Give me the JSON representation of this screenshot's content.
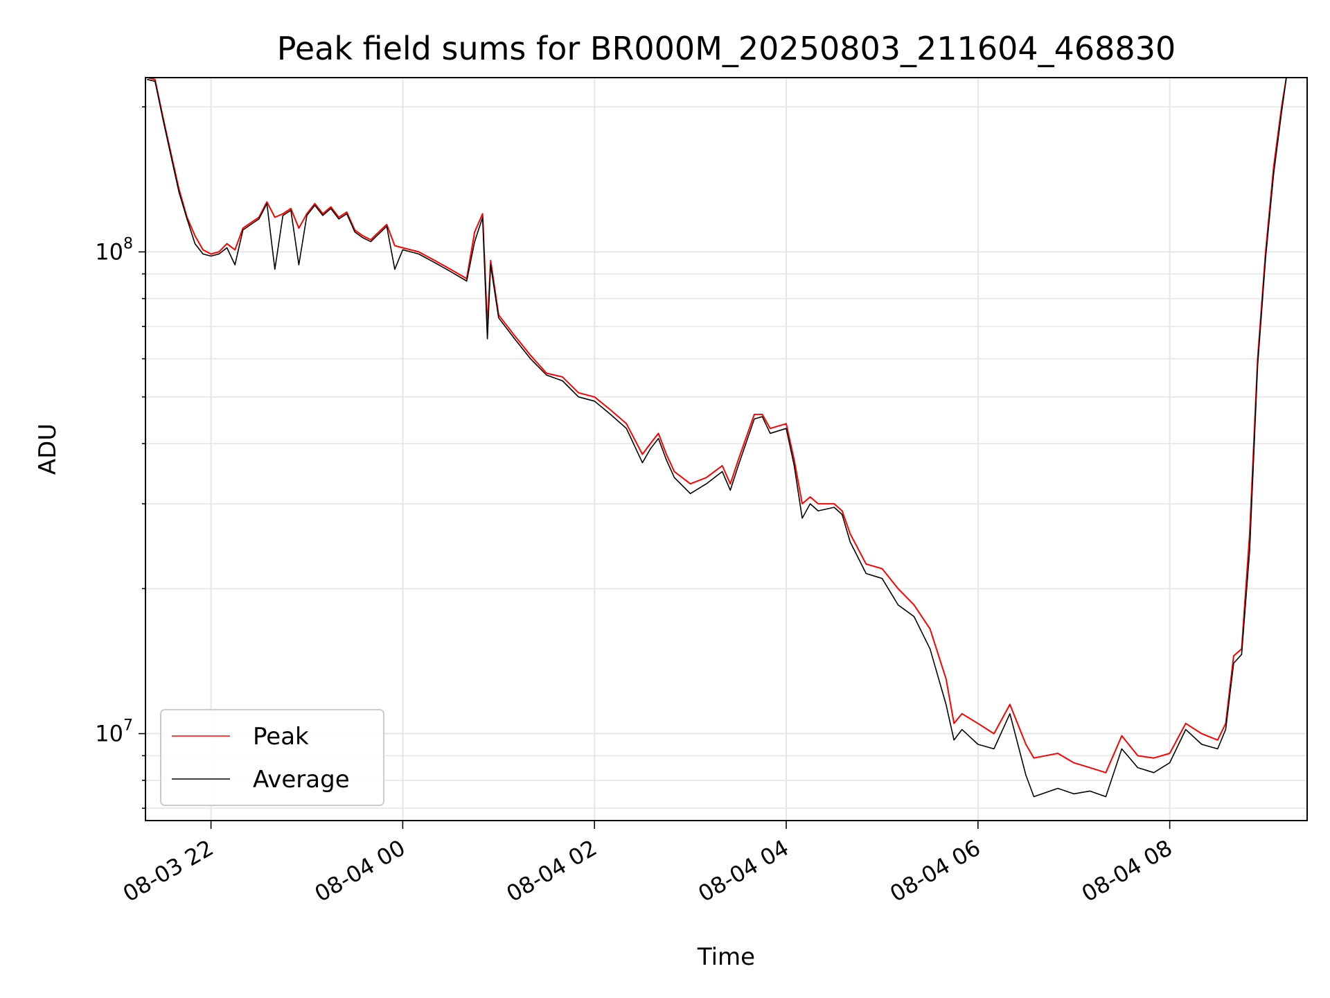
{
  "chart_data": {
    "type": "line",
    "title": "Peak field sums for BR000M_20250803_211604_468830",
    "xlabel": "Time",
    "ylabel": "ADU",
    "yscale": "log",
    "ylim": [
      6600000,
      230000000
    ],
    "xlim": [
      "2025-08-03T21:19",
      "2025-08-04T09:26"
    ],
    "grid": true,
    "legend": "lower-left",
    "colors": {
      "Peak": "#ff0000",
      "Average": "#000000",
      "grid": "#e6e6e6"
    },
    "x_ticks": [
      {
        "t": "2025-08-03T22:00",
        "label": "08-03 22"
      },
      {
        "t": "2025-08-04T00:00",
        "label": "08-04 00"
      },
      {
        "t": "2025-08-04T02:00",
        "label": "08-04 02"
      },
      {
        "t": "2025-08-04T04:00",
        "label": "08-04 04"
      },
      {
        "t": "2025-08-04T06:00",
        "label": "08-04 06"
      },
      {
        "t": "2025-08-04T08:00",
        "label": "08-04 08"
      }
    ],
    "y_ticks": [
      {
        "value": 10000000,
        "base": "10",
        "exp": "7"
      },
      {
        "value": 100000000,
        "base": "10",
        "exp": "8"
      }
    ],
    "series": [
      {
        "name": "Peak",
        "points": [
          [
            "2025-08-03T21:20",
            230000000
          ],
          [
            "2025-08-03T21:25",
            228000000
          ],
          [
            "2025-08-03T21:30",
            190000000
          ],
          [
            "2025-08-03T21:35",
            160000000
          ],
          [
            "2025-08-03T21:40",
            135000000
          ],
          [
            "2025-08-03T21:45",
            118000000
          ],
          [
            "2025-08-03T21:50",
            108000000
          ],
          [
            "2025-08-03T21:55",
            101000000
          ],
          [
            "2025-08-03T22:00",
            99000000
          ],
          [
            "2025-08-03T22:05",
            100000000
          ],
          [
            "2025-08-03T22:10",
            104000000
          ],
          [
            "2025-08-03T22:15",
            101000000
          ],
          [
            "2025-08-03T22:20",
            112000000
          ],
          [
            "2025-08-03T22:25",
            115000000
          ],
          [
            "2025-08-03T22:30",
            118000000
          ],
          [
            "2025-08-03T22:35",
            127000000
          ],
          [
            "2025-08-03T22:40",
            118000000
          ],
          [
            "2025-08-03T22:45",
            120000000
          ],
          [
            "2025-08-03T22:50",
            123000000
          ],
          [
            "2025-08-03T22:55",
            112000000
          ],
          [
            "2025-08-03T23:00",
            120000000
          ],
          [
            "2025-08-03T23:05",
            126000000
          ],
          [
            "2025-08-03T23:10",
            120000000
          ],
          [
            "2025-08-03T23:15",
            124000000
          ],
          [
            "2025-08-03T23:20",
            118000000
          ],
          [
            "2025-08-03T23:25",
            121000000
          ],
          [
            "2025-08-03T23:30",
            111000000
          ],
          [
            "2025-08-03T23:35",
            108000000
          ],
          [
            "2025-08-03T23:40",
            106000000
          ],
          [
            "2025-08-03T23:45",
            110000000
          ],
          [
            "2025-08-03T23:50",
            114000000
          ],
          [
            "2025-08-03T23:55",
            103000000
          ],
          [
            "2025-08-04T00:00",
            102000000
          ],
          [
            "2025-08-04T00:10",
            100000000
          ],
          [
            "2025-08-04T00:20",
            96000000
          ],
          [
            "2025-08-04T00:30",
            92000000
          ],
          [
            "2025-08-04T00:40",
            88000000
          ],
          [
            "2025-08-04T00:45",
            110000000
          ],
          [
            "2025-08-04T00:50",
            120000000
          ],
          [
            "2025-08-04T00:53",
            70000000
          ],
          [
            "2025-08-04T00:55",
            96000000
          ],
          [
            "2025-08-04T01:00",
            74000000
          ],
          [
            "2025-08-04T01:10",
            67000000
          ],
          [
            "2025-08-04T01:20",
            61000000
          ],
          [
            "2025-08-04T01:30",
            56000000
          ],
          [
            "2025-08-04T01:40",
            55000000
          ],
          [
            "2025-08-04T01:50",
            51000000
          ],
          [
            "2025-08-04T02:00",
            50000000
          ],
          [
            "2025-08-04T02:10",
            47000000
          ],
          [
            "2025-08-04T02:20",
            44000000
          ],
          [
            "2025-08-04T02:30",
            38000000
          ],
          [
            "2025-08-04T02:35",
            40000000
          ],
          [
            "2025-08-04T02:40",
            42000000
          ],
          [
            "2025-08-04T02:45",
            38000000
          ],
          [
            "2025-08-04T02:50",
            35000000
          ],
          [
            "2025-08-04T03:00",
            33000000
          ],
          [
            "2025-08-04T03:10",
            34000000
          ],
          [
            "2025-08-04T03:20",
            36000000
          ],
          [
            "2025-08-04T03:25",
            33000000
          ],
          [
            "2025-08-04T03:30",
            37000000
          ],
          [
            "2025-08-04T03:40",
            46000000
          ],
          [
            "2025-08-04T03:45",
            46000000
          ],
          [
            "2025-08-04T03:50",
            43000000
          ],
          [
            "2025-08-04T04:00",
            44000000
          ],
          [
            "2025-08-04T04:05",
            37000000
          ],
          [
            "2025-08-04T04:10",
            30000000
          ],
          [
            "2025-08-04T04:15",
            31000000
          ],
          [
            "2025-08-04T04:20",
            30000000
          ],
          [
            "2025-08-04T04:30",
            30000000
          ],
          [
            "2025-08-04T04:35",
            29000000
          ],
          [
            "2025-08-04T04:40",
            26000000
          ],
          [
            "2025-08-04T04:50",
            22500000
          ],
          [
            "2025-08-04T05:00",
            22000000
          ],
          [
            "2025-08-04T05:10",
            20000000
          ],
          [
            "2025-08-04T05:20",
            18500000
          ],
          [
            "2025-08-04T05:30",
            16500000
          ],
          [
            "2025-08-04T05:40",
            13000000
          ],
          [
            "2025-08-04T05:45",
            10500000
          ],
          [
            "2025-08-04T05:50",
            11000000
          ],
          [
            "2025-08-04T06:00",
            10500000
          ],
          [
            "2025-08-04T06:10",
            10000000
          ],
          [
            "2025-08-04T06:20",
            11500000
          ],
          [
            "2025-08-04T06:30",
            9500000
          ],
          [
            "2025-08-04T06:35",
            8900000
          ],
          [
            "2025-08-04T06:50",
            9100000
          ],
          [
            "2025-08-04T07:00",
            8700000
          ],
          [
            "2025-08-04T07:10",
            8500000
          ],
          [
            "2025-08-04T07:20",
            8300000
          ],
          [
            "2025-08-04T07:30",
            9900000
          ],
          [
            "2025-08-04T07:40",
            9000000
          ],
          [
            "2025-08-04T07:50",
            8900000
          ],
          [
            "2025-08-04T08:00",
            9100000
          ],
          [
            "2025-08-04T08:10",
            10500000
          ],
          [
            "2025-08-04T08:20",
            10000000
          ],
          [
            "2025-08-04T08:30",
            9700000
          ],
          [
            "2025-08-04T08:35",
            10500000
          ],
          [
            "2025-08-04T08:40",
            14500000
          ],
          [
            "2025-08-04T08:45",
            15000000
          ],
          [
            "2025-08-04T08:50",
            26000000
          ],
          [
            "2025-08-04T08:55",
            60000000
          ],
          [
            "2025-08-04T09:00",
            100000000
          ],
          [
            "2025-08-04T09:05",
            150000000
          ],
          [
            "2025-08-04T09:10",
            200000000
          ],
          [
            "2025-08-04T09:13",
            230000000
          ]
        ]
      },
      {
        "name": "Average",
        "points": [
          [
            "2025-08-03T21:20",
            228000000
          ],
          [
            "2025-08-03T21:25",
            226000000
          ],
          [
            "2025-08-03T21:30",
            188000000
          ],
          [
            "2025-08-03T21:35",
            158000000
          ],
          [
            "2025-08-03T21:40",
            133000000
          ],
          [
            "2025-08-03T21:45",
            117000000
          ],
          [
            "2025-08-03T21:50",
            104000000
          ],
          [
            "2025-08-03T21:55",
            99000000
          ],
          [
            "2025-08-03T22:00",
            98000000
          ],
          [
            "2025-08-03T22:05",
            99000000
          ],
          [
            "2025-08-03T22:10",
            102000000
          ],
          [
            "2025-08-03T22:15",
            94000000
          ],
          [
            "2025-08-03T22:20",
            111000000
          ],
          [
            "2025-08-03T22:25",
            114000000
          ],
          [
            "2025-08-03T22:30",
            117000000
          ],
          [
            "2025-08-03T22:35",
            126000000
          ],
          [
            "2025-08-03T22:40",
            92000000
          ],
          [
            "2025-08-03T22:45",
            119000000
          ],
          [
            "2025-08-03T22:50",
            122000000
          ],
          [
            "2025-08-03T22:55",
            94000000
          ],
          [
            "2025-08-03T23:00",
            119000000
          ],
          [
            "2025-08-03T23:05",
            125000000
          ],
          [
            "2025-08-03T23:10",
            119000000
          ],
          [
            "2025-08-03T23:15",
            123000000
          ],
          [
            "2025-08-03T23:20",
            117000000
          ],
          [
            "2025-08-03T23:25",
            120000000
          ],
          [
            "2025-08-03T23:30",
            110000000
          ],
          [
            "2025-08-03T23:35",
            107000000
          ],
          [
            "2025-08-03T23:40",
            105000000
          ],
          [
            "2025-08-03T23:45",
            109000000
          ],
          [
            "2025-08-03T23:50",
            113000000
          ],
          [
            "2025-08-03T23:55",
            92000000
          ],
          [
            "2025-08-04T00:00",
            101000000
          ],
          [
            "2025-08-04T00:10",
            99000000
          ],
          [
            "2025-08-04T00:20",
            95000000
          ],
          [
            "2025-08-04T00:30",
            91000000
          ],
          [
            "2025-08-04T00:40",
            87000000
          ],
          [
            "2025-08-04T00:45",
            105000000
          ],
          [
            "2025-08-04T00:50",
            118000000
          ],
          [
            "2025-08-04T00:53",
            66000000
          ],
          [
            "2025-08-04T00:55",
            94000000
          ],
          [
            "2025-08-04T01:00",
            73000000
          ],
          [
            "2025-08-04T01:10",
            66000000
          ],
          [
            "2025-08-04T01:20",
            60000000
          ],
          [
            "2025-08-04T01:30",
            55500000
          ],
          [
            "2025-08-04T01:40",
            54000000
          ],
          [
            "2025-08-04T01:50",
            50000000
          ],
          [
            "2025-08-04T02:00",
            49000000
          ],
          [
            "2025-08-04T02:10",
            46000000
          ],
          [
            "2025-08-04T02:20",
            43000000
          ],
          [
            "2025-08-04T02:30",
            36500000
          ],
          [
            "2025-08-04T02:35",
            39000000
          ],
          [
            "2025-08-04T02:40",
            41000000
          ],
          [
            "2025-08-04T02:45",
            37000000
          ],
          [
            "2025-08-04T02:50",
            34000000
          ],
          [
            "2025-08-04T03:00",
            31500000
          ],
          [
            "2025-08-04T03:10",
            33000000
          ],
          [
            "2025-08-04T03:20",
            35000000
          ],
          [
            "2025-08-04T03:25",
            32000000
          ],
          [
            "2025-08-04T03:30",
            36000000
          ],
          [
            "2025-08-04T03:40",
            45000000
          ],
          [
            "2025-08-04T03:45",
            45500000
          ],
          [
            "2025-08-04T03:50",
            42000000
          ],
          [
            "2025-08-04T04:00",
            43000000
          ],
          [
            "2025-08-04T04:05",
            36000000
          ],
          [
            "2025-08-04T04:10",
            28000000
          ],
          [
            "2025-08-04T04:15",
            30000000
          ],
          [
            "2025-08-04T04:20",
            29000000
          ],
          [
            "2025-08-04T04:30",
            29500000
          ],
          [
            "2025-08-04T04:35",
            28500000
          ],
          [
            "2025-08-04T04:40",
            25000000
          ],
          [
            "2025-08-04T04:50",
            21500000
          ],
          [
            "2025-08-04T05:00",
            21000000
          ],
          [
            "2025-08-04T05:10",
            18500000
          ],
          [
            "2025-08-04T05:20",
            17500000
          ],
          [
            "2025-08-04T05:30",
            15000000
          ],
          [
            "2025-08-04T05:40",
            11500000
          ],
          [
            "2025-08-04T05:45",
            9700000
          ],
          [
            "2025-08-04T05:50",
            10200000
          ],
          [
            "2025-08-04T06:00",
            9500000
          ],
          [
            "2025-08-04T06:10",
            9300000
          ],
          [
            "2025-08-04T06:20",
            11000000
          ],
          [
            "2025-08-04T06:30",
            8200000
          ],
          [
            "2025-08-04T06:35",
            7400000
          ],
          [
            "2025-08-04T06:50",
            7700000
          ],
          [
            "2025-08-04T07:00",
            7500000
          ],
          [
            "2025-08-04T07:10",
            7600000
          ],
          [
            "2025-08-04T07:20",
            7400000
          ],
          [
            "2025-08-04T07:30",
            9300000
          ],
          [
            "2025-08-04T07:40",
            8500000
          ],
          [
            "2025-08-04T07:50",
            8300000
          ],
          [
            "2025-08-04T08:00",
            8700000
          ],
          [
            "2025-08-04T08:10",
            10200000
          ],
          [
            "2025-08-04T08:20",
            9500000
          ],
          [
            "2025-08-04T08:30",
            9300000
          ],
          [
            "2025-08-04T08:35",
            10200000
          ],
          [
            "2025-08-04T08:40",
            14000000
          ],
          [
            "2025-08-04T08:45",
            14600000
          ],
          [
            "2025-08-04T08:50",
            24000000
          ],
          [
            "2025-08-04T08:55",
            58000000
          ],
          [
            "2025-08-04T09:00",
            97000000
          ],
          [
            "2025-08-04T09:05",
            145000000
          ],
          [
            "2025-08-04T09:10",
            195000000
          ],
          [
            "2025-08-04T09:13",
            230000000
          ]
        ]
      }
    ]
  }
}
